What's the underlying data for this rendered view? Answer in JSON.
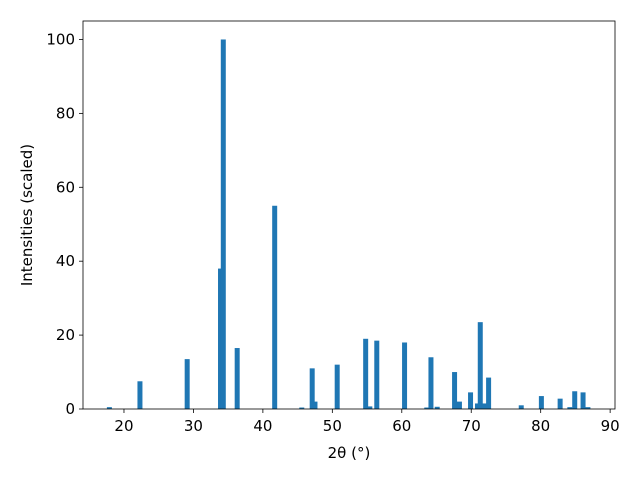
{
  "chart_data": {
    "type": "bar",
    "x_label": "2θ (°)",
    "y_label": "Intensities (scaled)",
    "x": [
      17.9,
      22.3,
      29.1,
      33.9,
      34.3,
      36.3,
      41.7,
      45.6,
      47.1,
      47.5,
      50.7,
      54.8,
      55.4,
      56.4,
      60.4,
      63.6,
      64.2,
      65.1,
      67.6,
      68.3,
      69.9,
      70.9,
      71.3,
      71.9,
      72.5,
      77.2,
      80.1,
      82.8,
      84.2,
      84.9,
      86.1,
      86.8
    ],
    "values": [
      0.5,
      7.5,
      13.5,
      38,
      100,
      16.5,
      55,
      0.4,
      11,
      2,
      12,
      19,
      0.7,
      18.5,
      18,
      0.4,
      14,
      0.6,
      10,
      2,
      4.5,
      1.5,
      23.5,
      1.5,
      8.5,
      1,
      3.5,
      2.8,
      0.5,
      4.8,
      4.5,
      0.5
    ],
    "color": "#1f77b4",
    "xlim": [
      14.1,
      90.7
    ],
    "xticks": [
      20,
      30,
      40,
      50,
      60,
      70,
      80,
      90
    ],
    "ylim": [
      0,
      105
    ],
    "yticks": [
      0,
      20,
      40,
      60,
      80,
      100
    ],
    "grid": false
  }
}
